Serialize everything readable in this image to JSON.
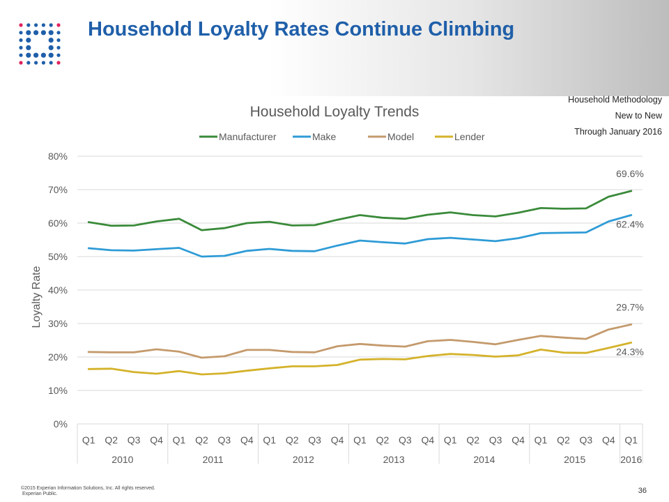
{
  "slide": {
    "title": "Household Loyalty Rates Continue Climbing",
    "methodology": [
      "Household Methodology",
      "New to New",
      "Through January 2016"
    ],
    "footer": {
      "copyright": "©2015 Experian Information Solutions, Inc. All rights reserved.",
      "classification": "Experian Public.",
      "page_number": "36"
    }
  },
  "logo": {
    "icon": "experian-dots-logo",
    "colors": [
      "#1f5fa9",
      "#e0245e"
    ]
  },
  "colors": {
    "title": "#1f5fa9",
    "grid": "#d9d9d9",
    "axis_text": "#595959"
  },
  "chart_data": {
    "type": "line",
    "title": "Household Loyalty Trends",
    "xlabel": "",
    "ylabel": "Loyalty Rate",
    "ylim": [
      0,
      80
    ],
    "yticks": [
      "0%",
      "10%",
      "20%",
      "30%",
      "40%",
      "50%",
      "60%",
      "70%",
      "80%"
    ],
    "grid": true,
    "legend_position": "top",
    "categories": [
      "Q1",
      "Q2",
      "Q3",
      "Q4",
      "Q1",
      "Q2",
      "Q3",
      "Q4",
      "Q1",
      "Q2",
      "Q3",
      "Q4",
      "Q1",
      "Q2",
      "Q3",
      "Q4",
      "Q1",
      "Q2",
      "Q3",
      "Q4",
      "Q1",
      "Q2",
      "Q3",
      "Q4",
      "Q1"
    ],
    "year_groups": [
      {
        "label": "2010",
        "count": 4
      },
      {
        "label": "2011",
        "count": 4
      },
      {
        "label": "2012",
        "count": 4
      },
      {
        "label": "2013",
        "count": 4
      },
      {
        "label": "2014",
        "count": 4
      },
      {
        "label": "2015",
        "count": 4
      },
      {
        "label": "2016",
        "count": 1
      }
    ],
    "series": [
      {
        "name": "Manufacturer",
        "color": "#3a8a3a",
        "end_label": "69.6%",
        "values": [
          60.3,
          59.2,
          59.3,
          60.5,
          61.3,
          57.9,
          58.5,
          60.0,
          60.4,
          59.3,
          59.4,
          61.0,
          62.4,
          61.6,
          61.3,
          62.5,
          63.2,
          62.4,
          62.0,
          63.1,
          64.5,
          64.3,
          64.4,
          67.9,
          69.6
        ]
      },
      {
        "name": "Make",
        "color": "#2e9bd6",
        "end_label": "62.4%",
        "values": [
          52.5,
          51.9,
          51.8,
          52.2,
          52.6,
          50.0,
          50.2,
          51.7,
          52.3,
          51.7,
          51.6,
          53.3,
          54.8,
          54.3,
          53.9,
          55.2,
          55.6,
          55.1,
          54.6,
          55.5,
          57.0,
          57.1,
          57.2,
          60.5,
          62.4
        ]
      },
      {
        "name": "Model",
        "color": "#c49a6c",
        "end_label": "29.7%",
        "values": [
          21.5,
          21.4,
          21.4,
          22.3,
          21.6,
          19.8,
          20.2,
          22.1,
          22.1,
          21.5,
          21.4,
          23.2,
          23.9,
          23.4,
          23.1,
          24.7,
          25.1,
          24.5,
          23.8,
          25.1,
          26.3,
          25.8,
          25.4,
          28.2,
          29.7
        ]
      },
      {
        "name": "Lender",
        "color": "#d4b22a",
        "end_label": "24.3%",
        "values": [
          16.4,
          16.5,
          15.5,
          15.0,
          15.8,
          14.8,
          15.1,
          15.9,
          16.6,
          17.2,
          17.2,
          17.6,
          19.2,
          19.4,
          19.3,
          20.3,
          20.9,
          20.6,
          20.1,
          20.5,
          22.2,
          21.3,
          21.2,
          22.7,
          24.3
        ]
      }
    ]
  }
}
